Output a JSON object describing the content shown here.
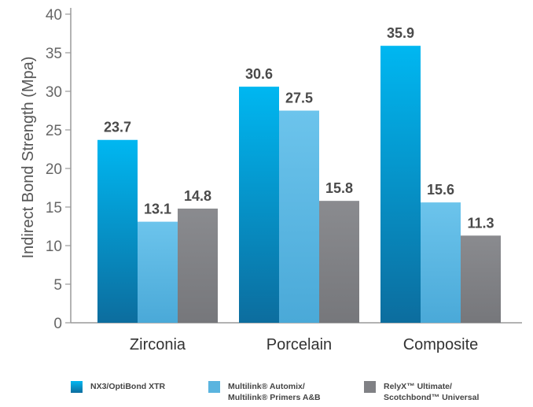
{
  "chart_data": {
    "type": "bar",
    "categories": [
      "Zirconia",
      "Porcelain",
      "Composite"
    ],
    "series": [
      {
        "name": "NX3/OptiBond XTR",
        "values": [
          23.7,
          30.6,
          35.9
        ],
        "color": "#0a8fd0"
      },
      {
        "name": "Multilink® Automix/ Multilink® Primers A&B",
        "values": [
          13.1,
          27.5,
          15.6
        ],
        "color": "#5ab4df"
      },
      {
        "name": "RelyX™ Ultimate/ Scotchbond™ Universal",
        "values": [
          14.8,
          15.8,
          11.3
        ],
        "color": "#828387"
      }
    ],
    "xlabel": "",
    "ylabel": "Indirect Bond Strength (Mpa)",
    "ylim": [
      0,
      40
    ],
    "yticks": [
      0,
      5,
      10,
      15,
      20,
      25,
      30,
      35,
      40
    ],
    "legend_position": "bottom",
    "grid": false
  },
  "legend": {
    "item1_line1": "NX3/OptiBond XTR",
    "item2_line1": "Multilink® Automix/",
    "item2_line2": "Multilink® Primers A&B",
    "item3_line1": "RelyX™ Ultimate/",
    "item3_line2": "Scotchbond™ Universal"
  }
}
